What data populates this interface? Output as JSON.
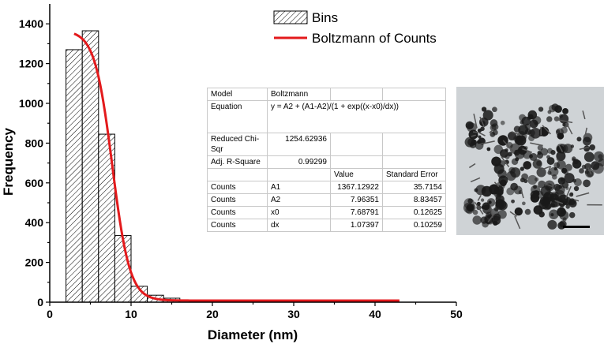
{
  "chart_data": {
    "type": "bar",
    "xlabel": "Diameter (nm)",
    "ylabel": "Frequency",
    "xlim": [
      0,
      50
    ],
    "ylim": [
      0,
      1500
    ],
    "xticks": [
      0,
      10,
      20,
      30,
      40,
      50
    ],
    "yticks": [
      0,
      200,
      400,
      600,
      800,
      1000,
      1200,
      1400
    ],
    "grid": false,
    "bins": {
      "name": "Bins",
      "edges": [
        2,
        4,
        6,
        8,
        10,
        12,
        14,
        16
      ],
      "values": [
        1270,
        1365,
        845,
        335,
        80,
        35,
        20
      ]
    },
    "fit": {
      "name": "Boltzmann of Counts",
      "model": "Boltzmann",
      "x_range": [
        3,
        43
      ],
      "A1": 1367.12922,
      "A2": 7.96351,
      "x0": 7.68791,
      "dx": 1.07397,
      "color": "#e31a1c"
    },
    "legend": {
      "placement": "top-right",
      "items": [
        "Bins",
        "Boltzmann of Counts"
      ]
    }
  },
  "stats_table": {
    "model_label": "Model",
    "model_value": "Boltzmann",
    "equation_label": "Equation",
    "equation_value": "y = A2 + (A1-A2)/(1 + exp((x-x0)/dx))",
    "chi_label": "Reduced Chi-Sqr",
    "chi_value": "1254.62936",
    "r2_label": "Adj. R-Square",
    "r2_value": "0.99299",
    "header_value": "Value",
    "header_error": "Standard Error",
    "rows": [
      {
        "group": "Counts",
        "param": "A1",
        "value": "1367.12922",
        "error": "35.7154"
      },
      {
        "group": "Counts",
        "param": "A2",
        "value": "7.96351",
        "error": "8.83457"
      },
      {
        "group": "Counts",
        "param": "x0",
        "value": "7.68791",
        "error": "0.12625"
      },
      {
        "group": "Counts",
        "param": "dx",
        "value": "1.07397",
        "error": "0.10259"
      }
    ]
  },
  "micrograph": {
    "background_color": "#cfd3d6",
    "particle_color": "#1a1a1a"
  }
}
